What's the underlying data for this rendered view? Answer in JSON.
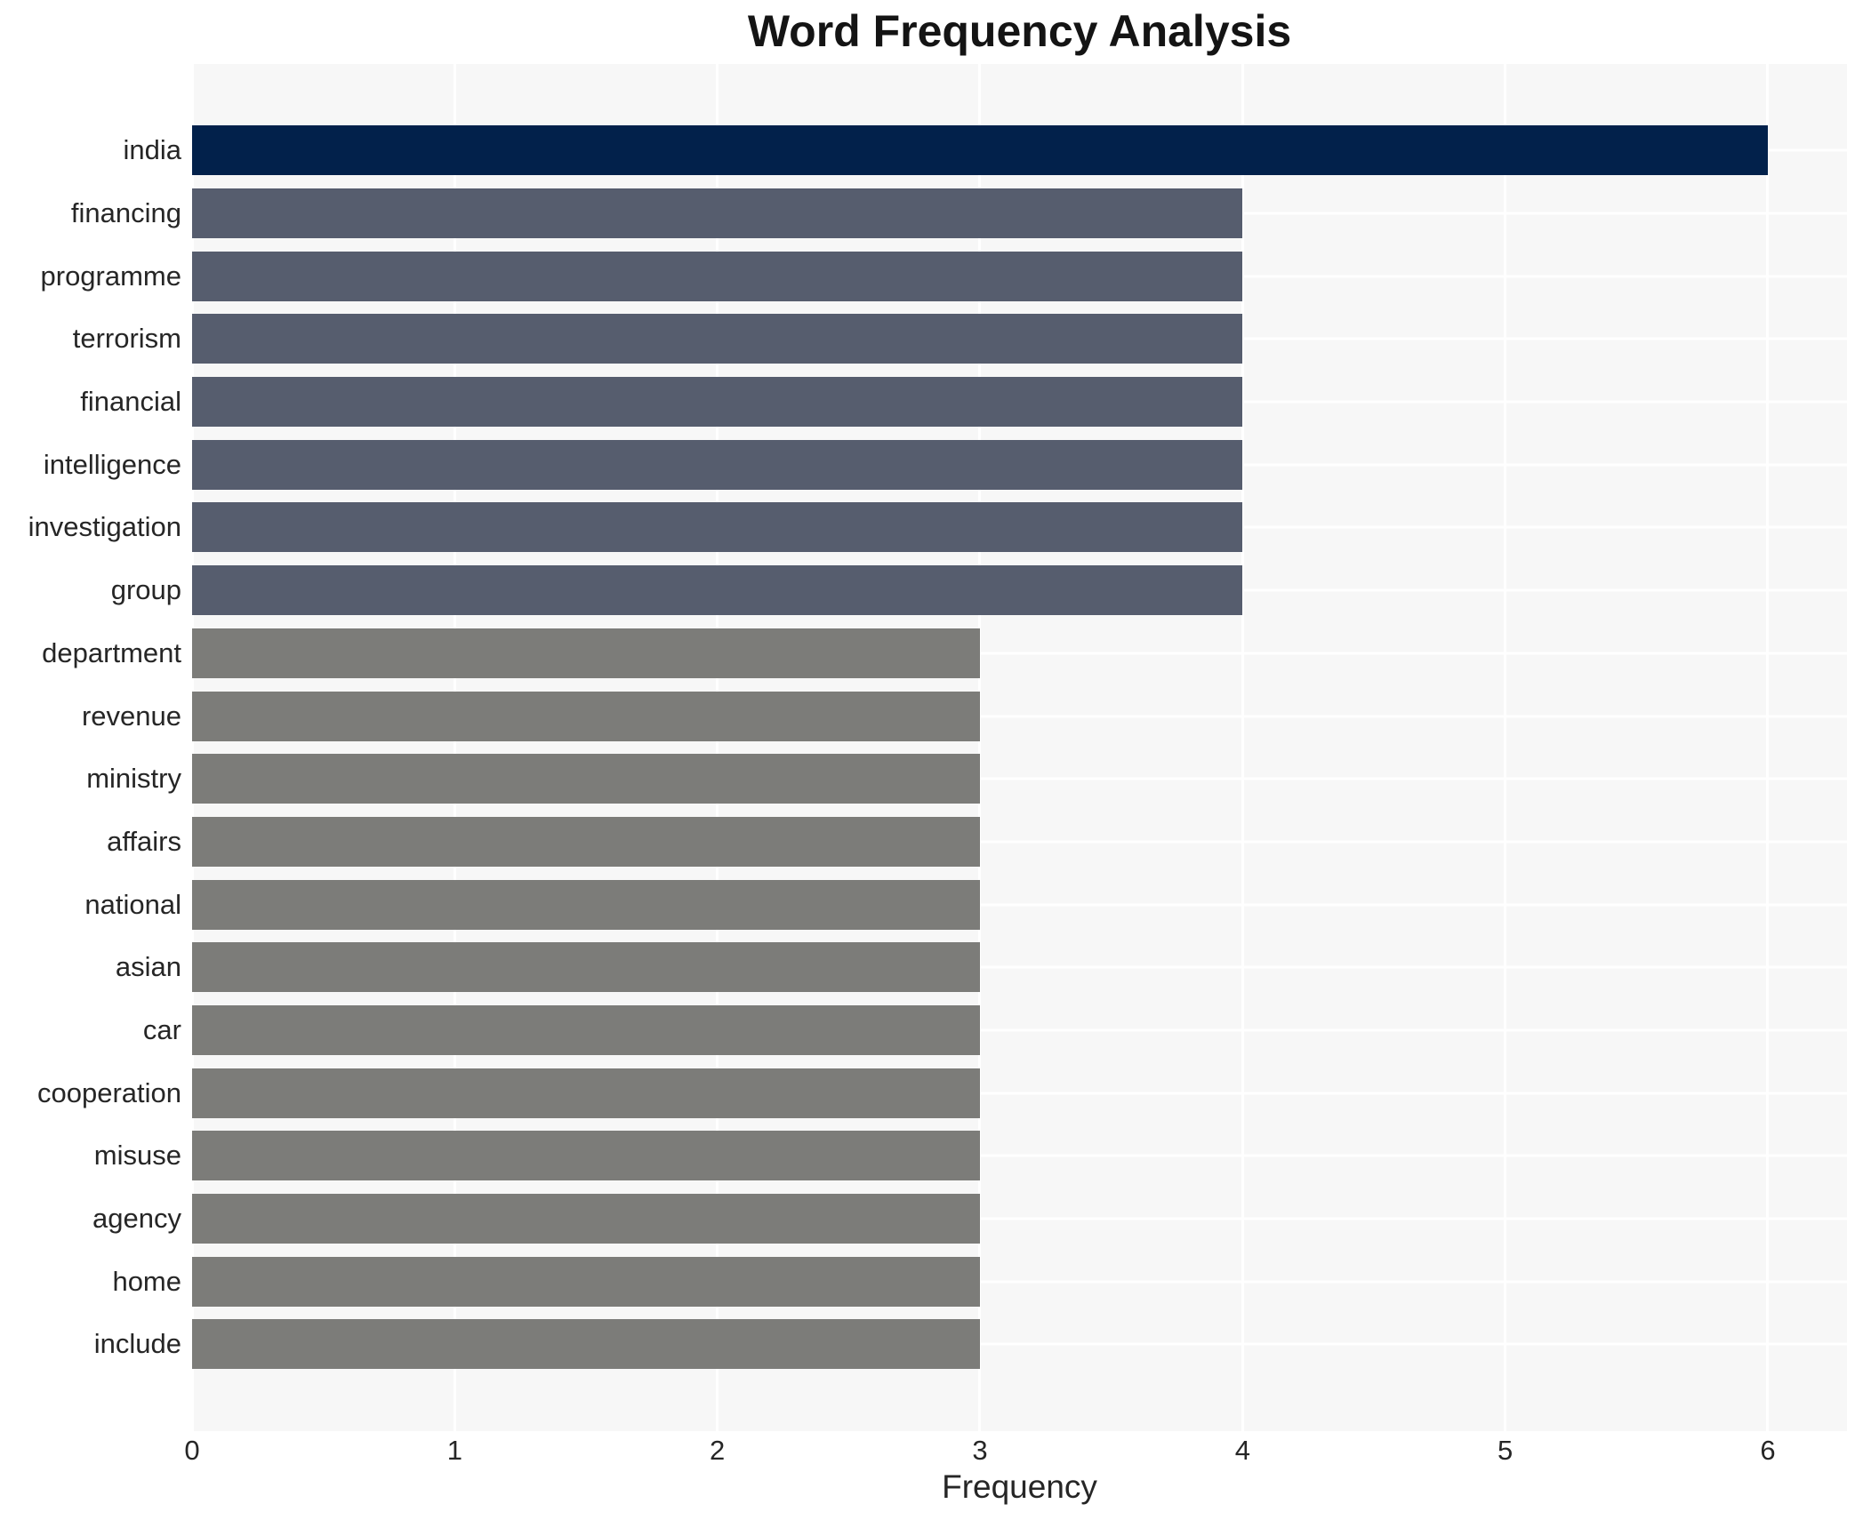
{
  "page": {
    "background": "#ffffff"
  },
  "chart_data": {
    "type": "bar",
    "orientation": "horizontal",
    "title": "Word Frequency Analysis",
    "xlabel": "Frequency",
    "ylabel": "",
    "xlim": [
      0,
      6
    ],
    "x_ticks": [
      "0",
      "1",
      "2",
      "3",
      "4",
      "5",
      "6"
    ],
    "grid": true,
    "legend": false,
    "plot_background": "#f7f7f7",
    "gridline_color": "#ffffff",
    "text_color": "#262626",
    "categories": [
      "india",
      "financing",
      "programme",
      "terrorism",
      "financial",
      "intelligence",
      "investigation",
      "group",
      "department",
      "revenue",
      "ministry",
      "affairs",
      "national",
      "asian",
      "car",
      "cooperation",
      "misuse",
      "agency",
      "home",
      "include"
    ],
    "values": [
      6,
      4,
      4,
      4,
      4,
      4,
      4,
      4,
      3,
      3,
      3,
      3,
      3,
      3,
      3,
      3,
      3,
      3,
      3,
      3
    ],
    "bar_colors": [
      "#02214b",
      "#565d6e",
      "#565d6e",
      "#565d6e",
      "#565d6e",
      "#565d6e",
      "#565d6e",
      "#565d6e",
      "#7c7c79",
      "#7c7c79",
      "#7c7c79",
      "#7c7c79",
      "#7c7c79",
      "#7c7c79",
      "#7c7c79",
      "#7c7c79",
      "#7c7c79",
      "#7c7c79",
      "#7c7c79",
      "#7c7c79"
    ]
  }
}
